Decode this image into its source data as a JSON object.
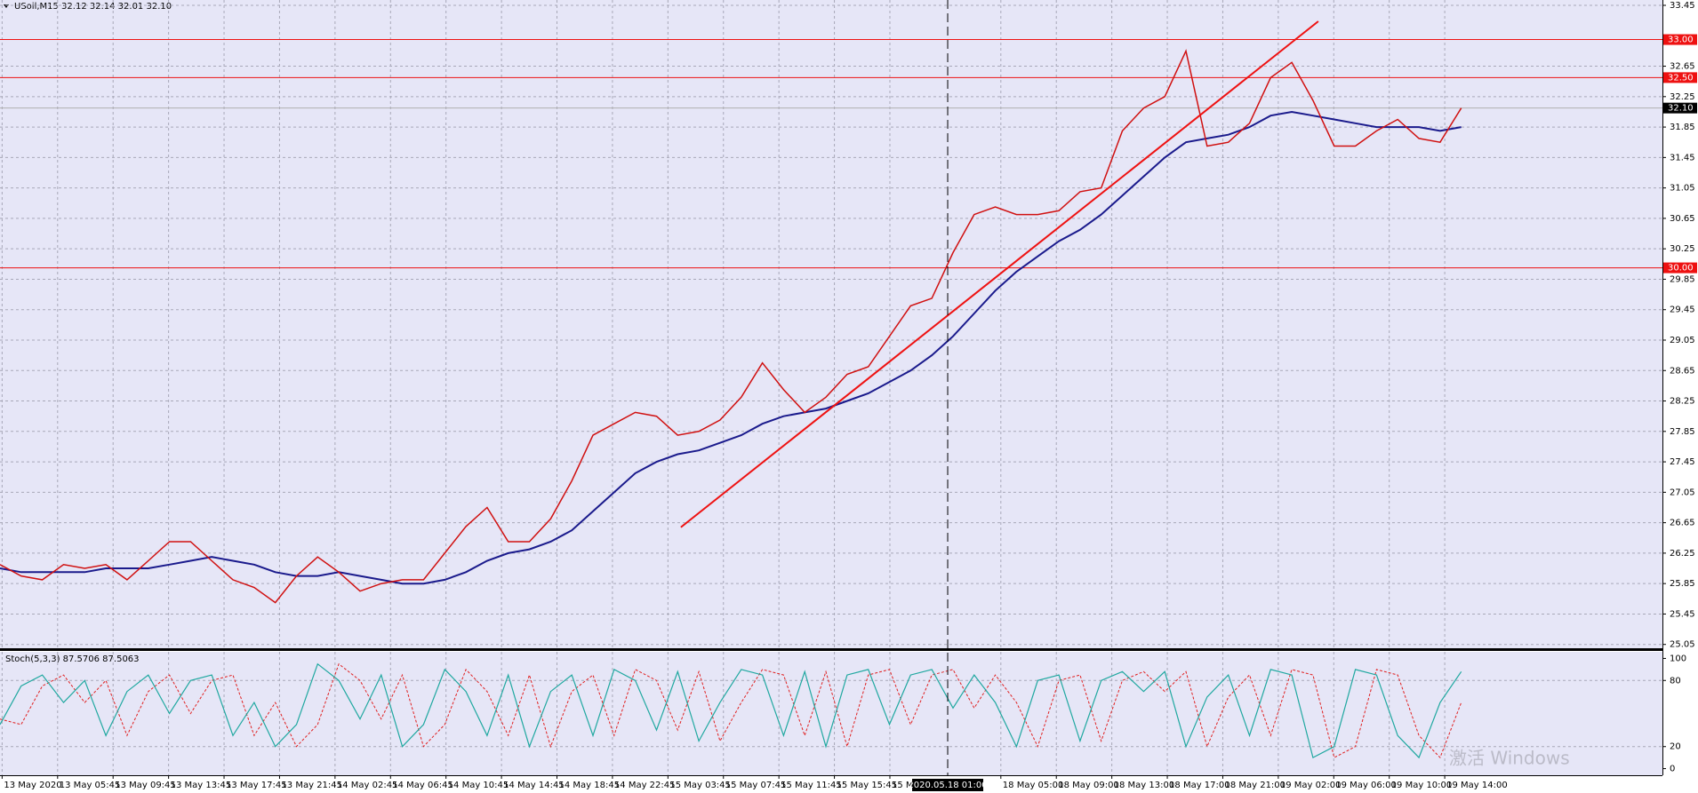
{
  "chart_data": {
    "type": "line",
    "title": "USoil,M15  32.12 32.14 32.01 32.10",
    "indicator_label": "Stoch(5,3,3) 87.5706 87.5063",
    "watermark": "激活 Windows",
    "background": "#e6e6f7",
    "close": {
      "color": "#d01010",
      "values": [
        26.1,
        25.95,
        25.9,
        26.1,
        26.05,
        26.1,
        25.9,
        26.15,
        26.4,
        26.4,
        26.15,
        25.9,
        25.8,
        25.6,
        25.95,
        26.2,
        26.0,
        25.75,
        25.85,
        25.9,
        25.9,
        26.25,
        26.6,
        26.85,
        26.4,
        26.4,
        26.7,
        27.2,
        27.8,
        27.95,
        28.1,
        28.05,
        27.8,
        27.85,
        28.0,
        28.3,
        28.75,
        28.4,
        28.1,
        28.3,
        28.6,
        28.7,
        29.1,
        29.5,
        29.6,
        30.2,
        30.7,
        30.8,
        30.7,
        30.7,
        30.75,
        31.0,
        31.05,
        31.8,
        32.1,
        32.25,
        32.85,
        31.6,
        31.65,
        31.9,
        32.5,
        32.7,
        32.2,
        31.6,
        31.6,
        31.8,
        31.95,
        31.7,
        31.65,
        32.1
      ]
    },
    "ma": {
      "color": "#1a1a8c",
      "values": [
        26.05,
        26.0,
        26.0,
        26.0,
        26.0,
        26.05,
        26.05,
        26.05,
        26.1,
        26.15,
        26.2,
        26.15,
        26.1,
        26.0,
        25.95,
        25.95,
        26.0,
        25.95,
        25.9,
        25.85,
        25.85,
        25.9,
        26.0,
        26.15,
        26.25,
        26.3,
        26.4,
        26.55,
        26.8,
        27.05,
        27.3,
        27.45,
        27.55,
        27.6,
        27.7,
        27.8,
        27.95,
        28.05,
        28.1,
        28.15,
        28.25,
        28.35,
        28.5,
        28.65,
        28.85,
        29.1,
        29.4,
        29.7,
        29.95,
        30.15,
        30.35,
        30.5,
        30.7,
        30.95,
        31.2,
        31.45,
        31.65,
        31.7,
        31.75,
        31.85,
        32.0,
        32.05,
        32.0,
        31.95,
        31.9,
        31.85,
        31.85,
        31.85,
        31.8,
        31.85
      ]
    },
    "trendline": {
      "color": "#ee1111",
      "x": [
        32.15,
        62.25
      ],
      "y": [
        26.59,
        33.24
      ]
    },
    "levels": [
      {
        "value": 33.0,
        "label": "33.00"
      },
      {
        "value": 32.5,
        "label": "32.50"
      },
      {
        "value": 30.0,
        "label": "30.00"
      }
    ],
    "level_color": "#ee1111",
    "current_price": {
      "value": 32.1,
      "label": "32.10"
    },
    "ylim": [
      25.0,
      33.52
    ],
    "yticks": [
      33.45,
      32.65,
      32.25,
      31.85,
      31.45,
      31.05,
      30.65,
      30.25,
      29.85,
      29.45,
      29.05,
      28.65,
      28.25,
      27.85,
      27.45,
      27.05,
      26.65,
      26.25,
      25.85,
      25.45,
      25.05
    ],
    "xlim": [
      0,
      78.5
    ],
    "xticks": [
      {
        "value": 0.1,
        "label": "13 May 2020"
      },
      {
        "value": 2.72,
        "label": "13 May 05:45"
      },
      {
        "value": 5.34,
        "label": "13 May 09:45"
      },
      {
        "value": 7.96,
        "label": "13 May 13:45"
      },
      {
        "value": 10.58,
        "label": "13 May 17:45"
      },
      {
        "value": 13.2,
        "label": "13 May 21:45"
      },
      {
        "value": 15.82,
        "label": "14 May 02:45"
      },
      {
        "value": 18.44,
        "label": "14 May 06:45"
      },
      {
        "value": 21.06,
        "label": "14 May 10:45"
      },
      {
        "value": 23.68,
        "label": "14 May 14:45"
      },
      {
        "value": 26.3,
        "label": "14 May 18:45"
      },
      {
        "value": 28.92,
        "label": "14 May 22:45"
      },
      {
        "value": 31.54,
        "label": "15 May 03:45"
      },
      {
        "value": 34.16,
        "label": "15 May 07:45"
      },
      {
        "value": 36.78,
        "label": "15 May 11:45"
      },
      {
        "value": 39.4,
        "label": "15 May 15:45"
      },
      {
        "value": 42.02,
        "label": "15 Ma"
      },
      {
        "value": 47.26,
        "label": "18 May 05:00"
      },
      {
        "value": 49.88,
        "label": "18 May 09:00"
      },
      {
        "value": 52.5,
        "label": "18 May 13:00"
      },
      {
        "value": 55.12,
        "label": "18 May 17:00"
      },
      {
        "value": 57.74,
        "label": "18 May 21:00"
      },
      {
        "value": 60.36,
        "label": "19 May 02:00"
      },
      {
        "value": 62.98,
        "label": "19 May 06:00"
      },
      {
        "value": 65.6,
        "label": "19 May 10:00"
      },
      {
        "value": 68.22,
        "label": "19 May 14:00"
      }
    ],
    "cursor": {
      "value": 44.75,
      "label": "2020.05.18 01:00"
    },
    "stoch_main": {
      "color": "#20a8a0",
      "values": [
        40,
        75,
        85,
        60,
        80,
        30,
        70,
        85,
        50,
        80,
        85,
        30,
        60,
        20,
        40,
        95,
        80,
        45,
        85,
        20,
        40,
        90,
        70,
        30,
        85,
        20,
        70,
        85,
        30,
        90,
        80,
        35,
        88,
        25,
        60,
        90,
        85,
        30,
        88,
        20,
        85,
        90,
        40,
        85,
        90,
        55,
        85,
        60,
        20,
        80,
        85,
        25,
        80,
        88,
        70,
        88,
        20,
        65,
        85,
        30,
        90,
        85,
        10,
        20,
        90,
        85,
        30,
        10,
        60,
        88
      ]
    },
    "stoch_signal": {
      "color": "#e02020",
      "values": [
        45,
        40,
        75,
        85,
        60,
        80,
        30,
        70,
        85,
        50,
        80,
        85,
        30,
        60,
        20,
        40,
        95,
        80,
        45,
        85,
        20,
        40,
        90,
        70,
        30,
        85,
        20,
        70,
        85,
        30,
        90,
        80,
        35,
        88,
        25,
        60,
        90,
        85,
        30,
        88,
        20,
        85,
        90,
        40,
        85,
        90,
        55,
        85,
        60,
        20,
        80,
        85,
        25,
        80,
        88,
        70,
        88,
        20,
        65,
        85,
        30,
        90,
        85,
        10,
        20,
        90,
        85,
        30,
        10,
        60
      ]
    },
    "stoch_ylim": [
      -6,
      106
    ],
    "stoch_yticks": [
      100,
      80,
      20,
      0
    ],
    "grid": true
  }
}
